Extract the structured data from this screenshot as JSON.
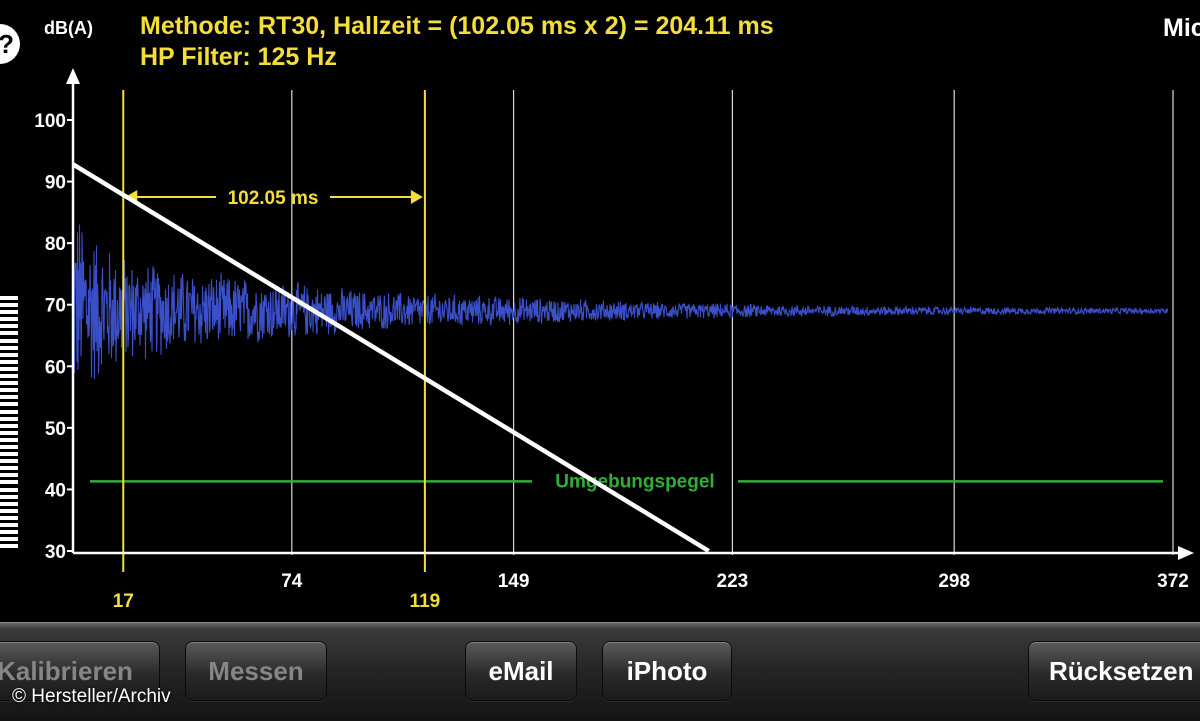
{
  "header": {
    "line1": "Methode: RT30, Hallzeit = (102.05 ms x 2) = 204.11 ms",
    "line2": "HP Filter: 125 Hz",
    "right_clip": "Mic",
    "info_glyph": "?"
  },
  "toolbar": {
    "kalibrieren": "Kalibrieren",
    "messen": "Messen",
    "email": "eMail",
    "iphoto": "iPhoto",
    "ruecksetzen": "Rücksetzen"
  },
  "copyright": "© Hersteller/Archiv",
  "colors": {
    "background": "#000000",
    "header_text": "#f3de3a",
    "signal": "#3a4fc8",
    "decay_line": "#ffffff",
    "marker": "#f3de3a",
    "ambient": "#2fae38",
    "grid": "#d8d8d8"
  },
  "chart_data": {
    "type": "line",
    "ylabel": "dB(A)",
    "ylim": [
      30,
      100
    ],
    "yticks": [
      30,
      40,
      50,
      60,
      70,
      80,
      90,
      100
    ],
    "xlim": [
      0,
      372
    ],
    "xticks": [
      "74",
      "149",
      "223",
      "298",
      "372"
    ],
    "xtick_values": [
      74,
      149,
      223,
      298,
      372
    ],
    "markers": [
      {
        "label": "17",
        "x": 17
      },
      {
        "label": "119",
        "x": 119
      }
    ],
    "interval_label": "102.05 ms",
    "interval_y": 87.5,
    "decay_line": {
      "x": [
        0,
        215
      ],
      "y": [
        92.8,
        30
      ]
    },
    "ambient_level": {
      "label": "Umgebungspegel",
      "y": 41.3
    },
    "signal_envelope": {
      "x": [
        0,
        10,
        20,
        40,
        74,
        100,
        149,
        200,
        250,
        300,
        372
      ],
      "center": [
        70,
        69,
        69,
        69,
        69,
        69,
        69,
        69,
        69,
        69,
        69
      ],
      "amplitude": [
        18,
        12,
        9,
        7,
        5,
        3.5,
        2.5,
        1.5,
        1,
        0.7,
        0.5
      ]
    },
    "grid": true
  }
}
